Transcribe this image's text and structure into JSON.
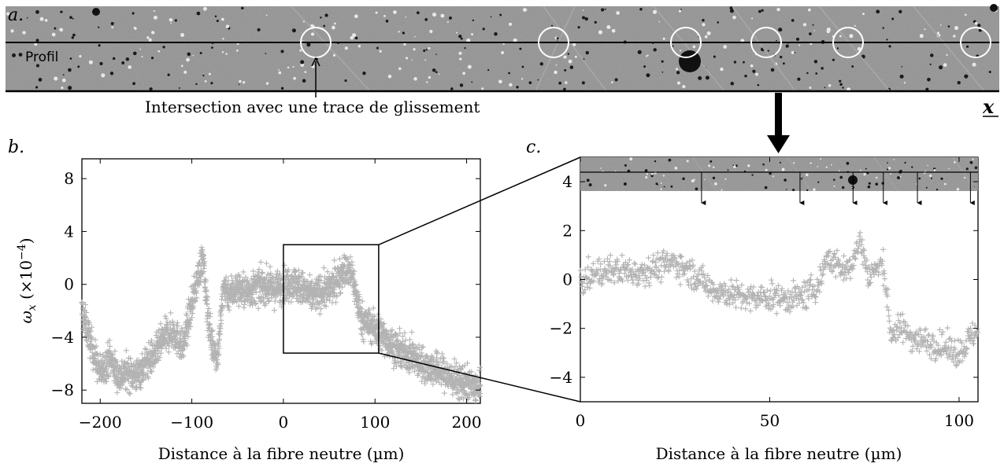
{
  "panels": {
    "a": {
      "letter": "a.",
      "profile_label": "Profil",
      "annotation": "Intersection avec une trace de glissement",
      "axis_label": "x"
    },
    "b": {
      "letter": "b."
    },
    "c": {
      "letter": "c."
    }
  },
  "chart_data": [
    {
      "id": "b",
      "type": "scatter",
      "title": "",
      "xlabel": "Distance à la fibre neutre (µm)",
      "ylabel_main": "ω",
      "ylabel_sub": "x",
      "ylabel_scale": "(×10",
      "ylabel_exp": "−4",
      "ylabel_close": ")",
      "xlim": [
        -220,
        215
      ],
      "ylim": [
        -9,
        9.5
      ],
      "xticks": [
        -200,
        -100,
        0,
        100,
        200
      ],
      "xtick_labels": [
        "−200",
        "−100",
        "0",
        "100",
        "200"
      ],
      "yticks": [
        -8,
        -4,
        0,
        4,
        8
      ],
      "ytick_labels": [
        "−8",
        "−4",
        "0",
        "4",
        "8"
      ],
      "marker": "+",
      "color": "#b3b3b3",
      "series": [
        {
          "x": [
            -220,
            -210,
            -200,
            -190,
            -180,
            -170,
            -160,
            -150,
            -140,
            -130,
            -120,
            -110,
            -100,
            -92,
            -88,
            -85,
            -82,
            -78,
            -72,
            -65,
            -60,
            -50,
            -40,
            -30,
            -20,
            -10,
            0,
            10,
            20,
            30,
            40,
            50,
            60,
            65,
            70,
            75,
            80,
            85,
            90,
            100,
            110,
            120,
            130,
            140,
            150,
            160,
            170,
            180,
            190,
            200,
            210,
            215
          ],
          "y": [
            -2.0,
            -4.5,
            -6.8,
            -5.5,
            -7.0,
            -6.6,
            -6.9,
            -6.0,
            -5.3,
            -4.0,
            -3.6,
            -4.8,
            -1.5,
            1.0,
            2.0,
            -0.5,
            -2.5,
            -4.5,
            -5.5,
            0.0,
            -0.7,
            -0.3,
            -0.6,
            -0.2,
            -0.1,
            -0.4,
            -0.1,
            0.2,
            -0.3,
            -0.9,
            -0.6,
            -0.4,
            0.4,
            1.2,
            0.9,
            0.8,
            -1.0,
            -2.6,
            -2.9,
            -3.3,
            -4.0,
            -4.7,
            -5.2,
            -5.4,
            -6.0,
            -6.3,
            -6.5,
            -7.0,
            -7.3,
            -7.6,
            -7.8,
            -8.0
          ]
        }
      ],
      "zoom_box": {
        "x": [
          0,
          104
        ],
        "y": [
          -5.2,
          3.0
        ]
      }
    },
    {
      "id": "c",
      "type": "scatter",
      "title": "",
      "xlabel": "Distance à la fibre neutre (µm)",
      "xlim": [
        0,
        105
      ],
      "ylim": [
        -5,
        5
      ],
      "xticks": [
        0,
        50,
        100
      ],
      "xtick_labels": [
        "0",
        "50",
        "100"
      ],
      "yticks": [
        -4,
        -2,
        0,
        2,
        4
      ],
      "ytick_labels": [
        "−4",
        "−2",
        "0",
        "2",
        "4"
      ],
      "marker": "+",
      "color": "#b3b3b3",
      "series": [
        {
          "x": [
            0,
            5,
            10,
            15,
            20,
            25,
            30,
            35,
            40,
            45,
            50,
            55,
            60,
            63,
            65,
            68,
            70,
            72,
            74,
            76,
            78,
            80,
            82,
            85,
            88,
            90,
            95,
            100,
            103,
            105
          ],
          "y": [
            -0.1,
            0.3,
            0.4,
            0.3,
            0.5,
            0.7,
            0.2,
            -0.4,
            -0.6,
            -0.8,
            -0.7,
            -0.8,
            -0.6,
            -0.2,
            0.9,
            0.6,
            0.3,
            0.8,
            1.6,
            0.2,
            0.4,
            0.6,
            -2.2,
            -2.0,
            -2.4,
            -2.5,
            -2.7,
            -3.0,
            -2.4,
            -2.0
          ]
        }
      ],
      "slip_arrows_x": [
        32,
        58,
        72,
        80,
        89,
        103
      ]
    }
  ]
}
